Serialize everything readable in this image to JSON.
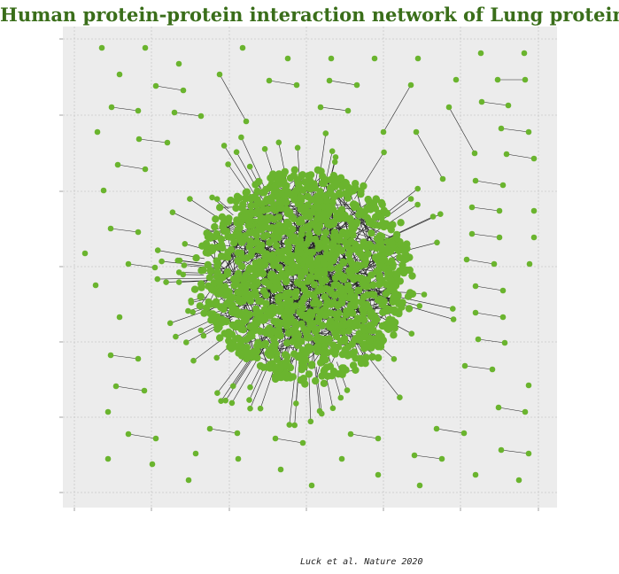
{
  "chart_data": {
    "type": "network",
    "title": "Human protein-protein interaction network of Lung proteins",
    "caption": "Luck et al. Nature 2020",
    "grid": true,
    "background": "#ececec",
    "node_color": "#6ab42e",
    "edge_color": "#222222",
    "title_color": "#3a6e1a",
    "x_tick_labels": [],
    "y_tick_labels": []
  }
}
